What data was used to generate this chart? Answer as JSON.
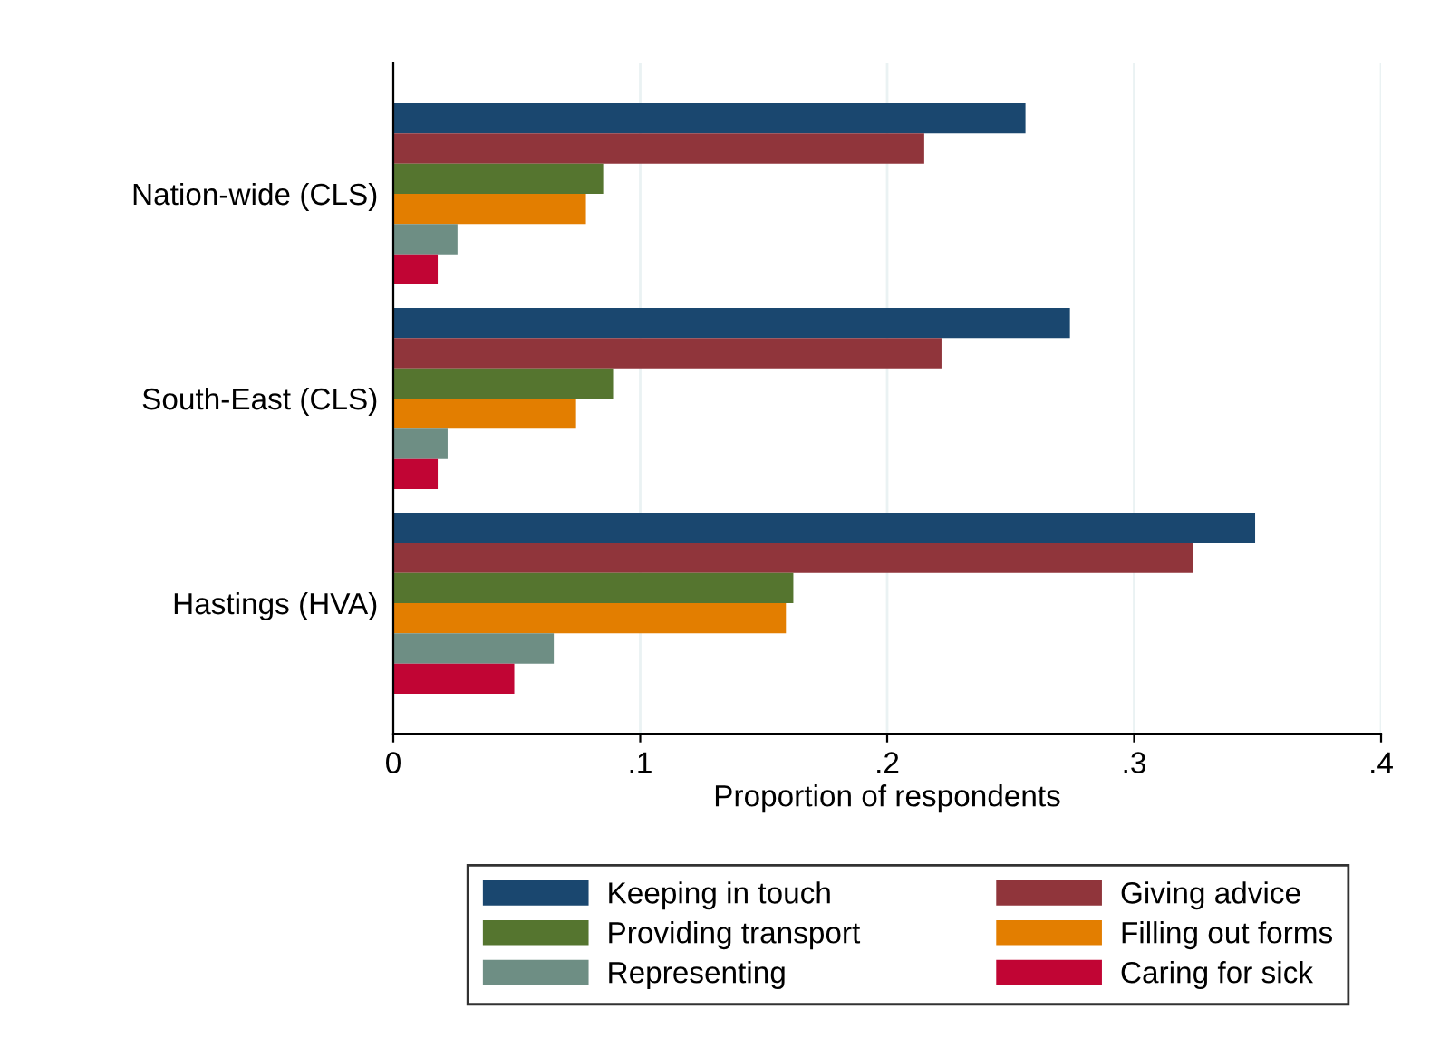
{
  "chart_data": {
    "type": "bar",
    "orientation": "horizontal",
    "xlabel": "Proportion of respondents",
    "categories": [
      "Nation-wide (CLS)",
      "South-East (CLS)",
      "Hastings (HVA)"
    ],
    "series": [
      {
        "name": "Keeping in touch",
        "color": "#1a476f",
        "values": [
          0.256,
          0.274,
          0.349
        ]
      },
      {
        "name": "Giving advice",
        "color": "#90353b",
        "values": [
          0.215,
          0.222,
          0.324
        ]
      },
      {
        "name": "Providing transport",
        "color": "#55752f",
        "values": [
          0.085,
          0.089,
          0.162
        ]
      },
      {
        "name": "Filling out forms",
        "color": "#e37e00",
        "values": [
          0.078,
          0.074,
          0.159
        ]
      },
      {
        "name": "Representing",
        "color": "#6e8e84",
        "values": [
          0.026,
          0.022,
          0.065
        ]
      },
      {
        "name": "Caring for sick",
        "color": "#c10534",
        "values": [
          0.018,
          0.018,
          0.049
        ]
      }
    ],
    "xlim": [
      0,
      0.4
    ],
    "xticks": [
      0,
      {
        "value": 0.1,
        "label": ".1"
      },
      {
        "value": 0.2,
        "label": ".2"
      },
      {
        "value": 0.3,
        "label": ".3"
      },
      {
        "value": 0.4,
        "label": ".4"
      }
    ],
    "grid": "x",
    "legend": "bottom"
  }
}
